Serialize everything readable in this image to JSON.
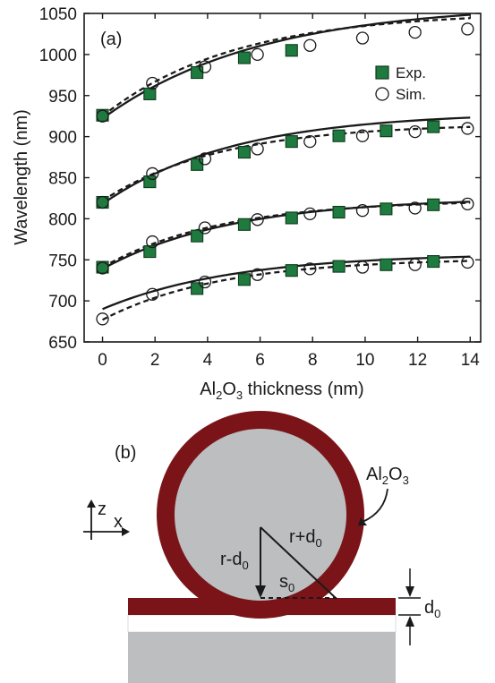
{
  "chart_data": {
    "type": "scatter",
    "panel_label": "(a)",
    "xlabel": {
      "base": "Al",
      "sub1": "2",
      "mid": "O",
      "sub2": "3",
      "rest": " thickness (nm)"
    },
    "ylabel": "Wavelength (nm)",
    "xlim": [
      -0.7,
      14.4
    ],
    "ylim": [
      650,
      1050
    ],
    "xticks": [
      0,
      2,
      4,
      6,
      8,
      10,
      12,
      14
    ],
    "yticks": [
      650,
      700,
      750,
      800,
      850,
      900,
      950,
      1000,
      1050
    ],
    "legend": {
      "position": "top-right",
      "entries": [
        "Exp.",
        "Sim."
      ]
    },
    "colors": {
      "exp_fill": "#1f7a3f",
      "exp_edge": "#0d3a1c",
      "line": "#1a1a1a"
    },
    "series": [
      {
        "name": "Exp.",
        "marker": "square",
        "points": [
          [
            0,
            926
          ],
          [
            1.8,
            952
          ],
          [
            3.6,
            978
          ],
          [
            5.4,
            996
          ],
          [
            7.2,
            1005
          ],
          [
            0,
            820
          ],
          [
            1.8,
            845
          ],
          [
            3.6,
            866
          ],
          [
            5.4,
            881
          ],
          [
            7.2,
            894
          ],
          [
            9.0,
            901
          ],
          [
            10.8,
            907
          ],
          [
            12.6,
            912
          ],
          [
            0,
            741
          ],
          [
            1.8,
            760
          ],
          [
            3.6,
            779
          ],
          [
            5.4,
            793
          ],
          [
            7.2,
            801
          ],
          [
            9.0,
            808
          ],
          [
            10.8,
            812
          ],
          [
            12.6,
            817
          ],
          [
            3.6,
            715
          ],
          [
            5.4,
            726
          ],
          [
            7.2,
            737
          ],
          [
            9.0,
            742
          ],
          [
            10.8,
            744
          ],
          [
            12.6,
            748
          ]
        ]
      },
      {
        "name": "Sim.",
        "marker": "circle",
        "points": [
          [
            0,
            925
          ],
          [
            1.9,
            965
          ],
          [
            3.9,
            985
          ],
          [
            5.9,
            1000
          ],
          [
            7.9,
            1011
          ],
          [
            9.9,
            1020
          ],
          [
            11.9,
            1027
          ],
          [
            13.9,
            1031
          ],
          [
            0,
            820
          ],
          [
            1.9,
            855
          ],
          [
            3.9,
            873
          ],
          [
            5.9,
            885
          ],
          [
            7.9,
            894
          ],
          [
            9.9,
            901
          ],
          [
            11.9,
            906
          ],
          [
            13.9,
            910
          ],
          [
            0,
            740
          ],
          [
            1.9,
            772
          ],
          [
            3.9,
            789
          ],
          [
            5.9,
            799
          ],
          [
            7.9,
            806
          ],
          [
            9.9,
            810
          ],
          [
            11.9,
            813
          ],
          [
            13.9,
            818
          ],
          [
            0,
            678
          ],
          [
            1.9,
            708
          ],
          [
            3.9,
            723
          ],
          [
            5.9,
            732
          ],
          [
            7.9,
            739
          ],
          [
            9.9,
            741
          ],
          [
            11.9,
            744
          ],
          [
            13.9,
            747
          ]
        ]
      }
    ],
    "fit_curves": [
      {
        "style": "solid",
        "y0": 922,
        "yinf": 1062,
        "tau": 6.0
      },
      {
        "style": "dashed",
        "y0": 925,
        "yinf": 1052,
        "tau": 5.0
      },
      {
        "style": "solid",
        "y0": 818,
        "yinf": 930,
        "tau": 5.0
      },
      {
        "style": "dashed",
        "y0": 822,
        "yinf": 916,
        "tau": 4.5
      },
      {
        "style": "solid",
        "y0": 739,
        "yinf": 826,
        "tau": 5.0
      },
      {
        "style": "dashed",
        "y0": 741,
        "yinf": 823,
        "tau": 4.5
      },
      {
        "style": "solid",
        "y0": 690,
        "yinf": 758,
        "tau": 5.0
      },
      {
        "style": "dashed",
        "y0": 677,
        "yinf": 752,
        "tau": 4.5
      }
    ]
  },
  "diagram": {
    "panel_label": "(b)",
    "coating_label": {
      "base": "Al",
      "sub1": "2",
      "mid": "O",
      "sub2": "3"
    },
    "axis_z": "z",
    "axis_x": "x",
    "label_r_minus": {
      "base": "r-d",
      "sub": "0"
    },
    "label_r_plus": {
      "base": "r+d",
      "sub": "0"
    },
    "label_s": {
      "base": "s",
      "sub": "0"
    },
    "label_d": {
      "base": "d",
      "sub": "0"
    },
    "colors": {
      "coating": "#7a1418",
      "sphere": "#bcbec0",
      "spacer": "#ffffff",
      "substrate": "#bcbec0"
    }
  }
}
